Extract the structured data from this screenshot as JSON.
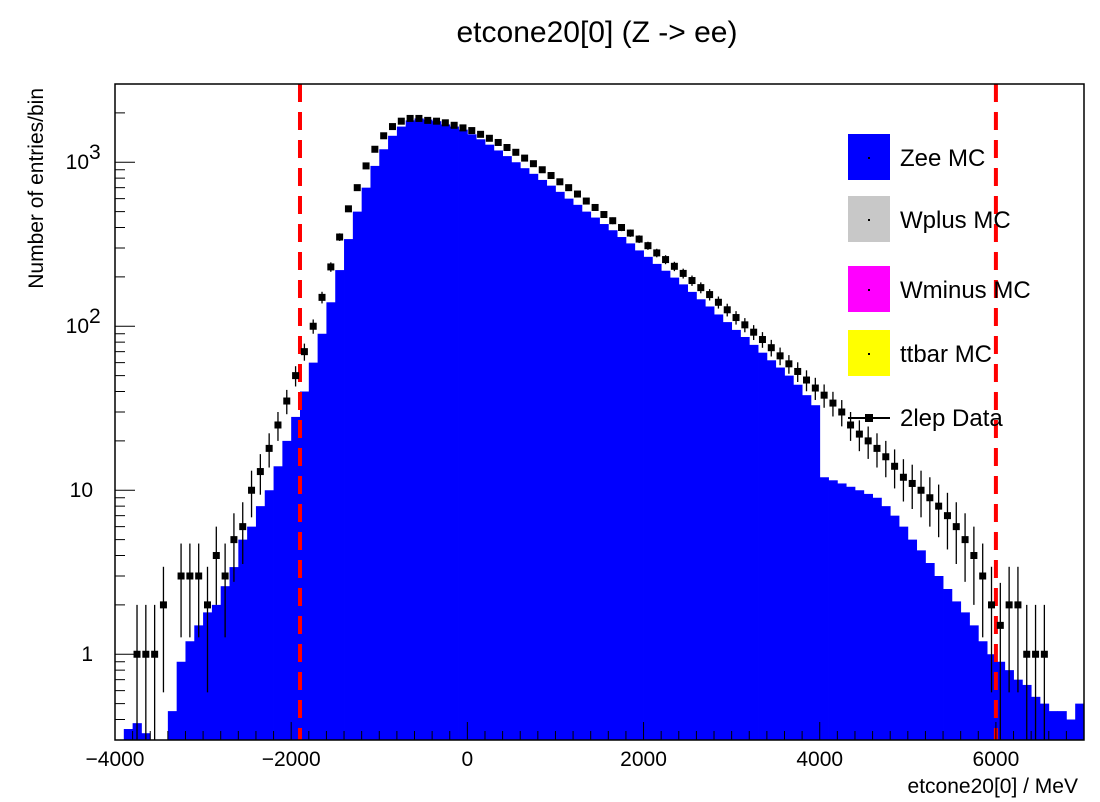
{
  "chart_data": {
    "type": "bar",
    "stacked": true,
    "log_y": true,
    "title": "etcone20[0] (Z -> ee)",
    "xlabel": "etcone20[0] / MeV",
    "ylabel": "Number of entries/bin",
    "xlim": [
      -4000,
      7000
    ],
    "ylim": [
      0.3,
      3000
    ],
    "x_ticks": [
      -4000,
      -2000,
      0,
      2000,
      4000,
      6000
    ],
    "x_tick_labels": [
      "−4000",
      "−2000",
      "0",
      "2000",
      "4000",
      "6000"
    ],
    "y_ticks": [
      1,
      10,
      100,
      1000
    ],
    "y_tick_labels": [
      "1",
      "10",
      "10^2",
      "10^3"
    ],
    "cut_lines": [
      -1900,
      6000
    ],
    "cut_line_color": "#ff0000",
    "legend_position": "top-right",
    "bin_width": 100,
    "series": [
      {
        "name": "Zee MC",
        "color": "#0000ff",
        "x": [
          -3950,
          -3850,
          -3750,
          -3650,
          -3550,
          -3450,
          -3350,
          -3250,
          -3150,
          -3050,
          -2950,
          -2850,
          -2750,
          -2650,
          -2550,
          -2450,
          -2350,
          -2250,
          -2150,
          -2050,
          -1950,
          -1850,
          -1750,
          -1650,
          -1550,
          -1450,
          -1350,
          -1250,
          -1150,
          -1050,
          -950,
          -850,
          -750,
          -650,
          -550,
          -450,
          -350,
          -250,
          -150,
          -50,
          50,
          150,
          250,
          350,
          450,
          550,
          650,
          750,
          850,
          950,
          1050,
          1150,
          1250,
          1350,
          1450,
          1550,
          1650,
          1750,
          1850,
          1950,
          2050,
          2150,
          2250,
          2350,
          2450,
          2550,
          2650,
          2750,
          2850,
          2950,
          3050,
          3150,
          3250,
          3350,
          3450,
          3550,
          3650,
          3750,
          3850,
          3950,
          4050,
          4150,
          4250,
          4350,
          4450,
          4550,
          4650,
          4750,
          4850,
          4950,
          5050,
          5150,
          5250,
          5350,
          5450,
          5550,
          5650,
          5750,
          5850,
          5950,
          6050,
          6150,
          6250,
          6350,
          6450,
          6550,
          6650,
          6750,
          6850,
          6950
        ],
        "values": [
          0,
          0.35,
          0.38,
          0.33,
          0,
          0,
          0.45,
          0.9,
          1.2,
          1.5,
          1.8,
          2.0,
          2.6,
          3.4,
          5,
          6,
          8,
          10,
          14,
          20,
          28,
          40,
          60,
          90,
          140,
          220,
          340,
          500,
          700,
          950,
          1200,
          1450,
          1650,
          1800,
          1850,
          1820,
          1780,
          1700,
          1650,
          1580,
          1480,
          1380,
          1280,
          1180,
          1090,
          1000,
          920,
          850,
          780,
          720,
          660,
          600,
          550,
          500,
          460,
          420,
          385,
          350,
          320,
          290,
          265,
          240,
          218,
          198,
          180,
          162,
          146,
          132,
          118,
          106,
          95,
          86,
          77,
          69,
          62,
          56,
          50,
          44,
          38,
          33,
          12,
          11.5,
          11,
          10.5,
          10,
          9.5,
          9,
          8,
          7,
          6,
          5,
          4.3,
          3.6,
          3.0,
          2.5,
          2.1,
          1.8,
          1.5,
          1.2,
          1.0,
          0.9,
          0.8,
          0.7,
          0.65,
          0.55,
          0.5,
          0.45,
          0.45,
          0.4,
          0.5
        ]
      },
      {
        "name": "Wplus MC",
        "color": "#c8c8c8",
        "x": [],
        "values": []
      },
      {
        "name": "Wminus MC",
        "color": "#ff00ff",
        "x": [],
        "values": []
      },
      {
        "name": "ttbar MC",
        "color": "#ffff00",
        "x": [],
        "values": []
      },
      {
        "name": "2lep Data",
        "color": "#000000",
        "marker": "square",
        "x": [
          -3750,
          -3650,
          -3550,
          -3450,
          -3250,
          -3150,
          -3050,
          -2950,
          -2850,
          -2750,
          -2650,
          -2550,
          -2450,
          -2350,
          -2250,
          -2150,
          -2050,
          -1950,
          -1850,
          -1750,
          -1650,
          -1550,
          -1450,
          -1350,
          -1250,
          -1150,
          -1050,
          -950,
          -850,
          -750,
          -650,
          -550,
          -450,
          -350,
          -250,
          -150,
          -50,
          50,
          150,
          250,
          350,
          450,
          550,
          650,
          750,
          850,
          950,
          1050,
          1150,
          1250,
          1350,
          1450,
          1550,
          1650,
          1750,
          1850,
          1950,
          2050,
          2150,
          2250,
          2350,
          2450,
          2550,
          2650,
          2750,
          2850,
          2950,
          3050,
          3150,
          3250,
          3350,
          3450,
          3550,
          3650,
          3750,
          3850,
          3950,
          4050,
          4150,
          4250,
          4350,
          4450,
          4550,
          4650,
          4750,
          4850,
          4950,
          5050,
          5150,
          5250,
          5350,
          5450,
          5550,
          5650,
          5750,
          5850,
          5950,
          6050,
          6150,
          6250,
          6350,
          6450,
          6550
        ],
        "values": [
          1,
          1,
          1,
          2,
          3,
          3,
          3,
          2,
          4,
          3,
          5,
          6,
          10,
          13,
          18,
          25,
          35,
          50,
          70,
          100,
          150,
          230,
          350,
          520,
          700,
          950,
          1200,
          1450,
          1650,
          1780,
          1850,
          1850,
          1800,
          1780,
          1740,
          1680,
          1620,
          1560,
          1480,
          1400,
          1320,
          1230,
          1150,
          1060,
          980,
          900,
          830,
          760,
          700,
          640,
          580,
          530,
          480,
          440,
          400,
          370,
          340,
          310,
          280,
          255,
          232,
          210,
          190,
          172,
          156,
          140,
          126,
          113,
          102,
          92,
          83,
          74,
          66,
          59,
          53,
          47,
          42,
          38,
          34,
          30,
          25,
          22,
          20,
          18,
          16,
          14,
          12,
          11,
          10,
          9,
          8,
          7,
          6,
          5,
          4,
          3,
          2,
          1.5,
          2,
          2,
          1,
          1,
          1
        ]
      }
    ]
  }
}
